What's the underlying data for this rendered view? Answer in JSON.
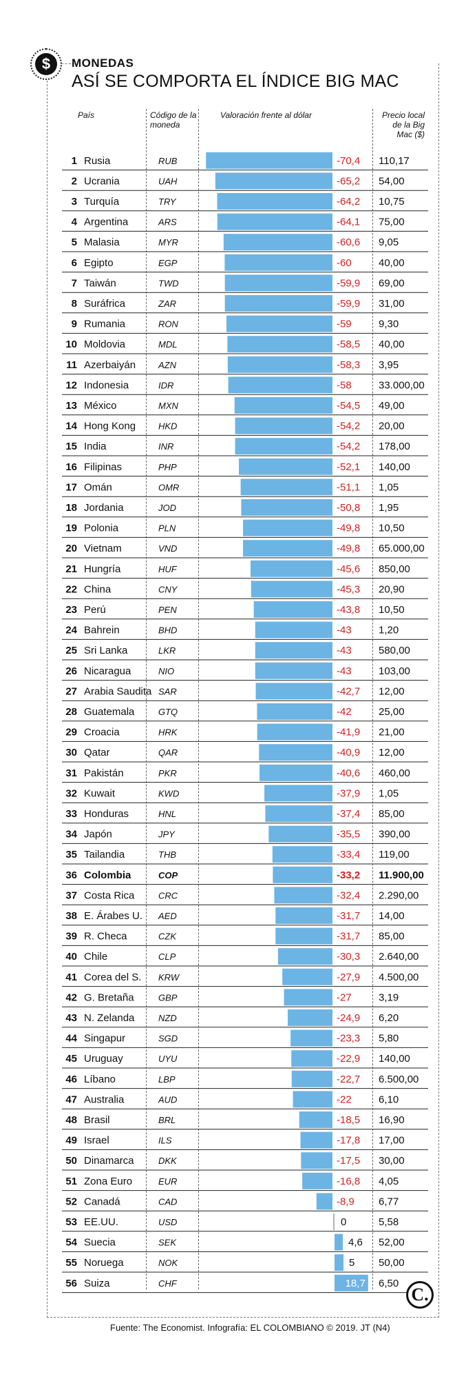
{
  "header": {
    "kicker": "MONEDAS",
    "title": "ASÍ SE COMPORTA EL ÍNDICE BIG MAC",
    "logo_icon": "dollar-coin-icon",
    "logo_symbol": "$"
  },
  "columns": {
    "country": "País",
    "code": "Código de la moneda",
    "valuation": "Valoración frente al dólar",
    "price": "Precio local de la Big Mac ($)"
  },
  "footer": {
    "source": "Fuente: The Economist. Infografía: EL COLOMBIANO © 2019. JT (N4)",
    "brand_icon": "el-colombiano-c-icon",
    "brand_symbol": "C."
  },
  "colors": {
    "bar": "#6cb4e4",
    "negative_text": "#d62020",
    "positive_text": "#111111",
    "positive_label_on_bar": "#ffffff"
  },
  "chart_data": {
    "type": "table",
    "value_unit": "percent valuation vs US dollar",
    "highlight_country": "Colombia",
    "rows": [
      {
        "rank": "1",
        "country": "Rusia",
        "code": "RUB",
        "value": -70.4,
        "value_label": "-70,4",
        "price": "110,17"
      },
      {
        "rank": "2",
        "country": "Ucrania",
        "code": "UAH",
        "value": -65.2,
        "value_label": "-65,2",
        "price": "54,00"
      },
      {
        "rank": "3",
        "country": "Turquía",
        "code": "TRY",
        "value": -64.2,
        "value_label": "-64,2",
        "price": "10,75"
      },
      {
        "rank": "4",
        "country": "Argentina",
        "code": "ARS",
        "value": -64.1,
        "value_label": "-64,1",
        "price": "75,00"
      },
      {
        "rank": "5",
        "country": "Malasia",
        "code": "MYR",
        "value": -60.6,
        "value_label": "-60,6",
        "price": "9,05"
      },
      {
        "rank": "6",
        "country": "Egipto",
        "code": "EGP",
        "value": -60,
        "value_label": "-60",
        "price": "40,00"
      },
      {
        "rank": "7",
        "country": "Taiwán",
        "code": "TWD",
        "value": -59.9,
        "value_label": "-59,9",
        "price": "69,00"
      },
      {
        "rank": "8",
        "country": "Suráfrica",
        "code": "ZAR",
        "value": -59.9,
        "value_label": "-59,9",
        "price": "31,00"
      },
      {
        "rank": "9",
        "country": "Rumania",
        "code": "RON",
        "value": -59,
        "value_label": "-59",
        "price": "9,30"
      },
      {
        "rank": "10",
        "country": "Moldovia",
        "code": "MDL",
        "value": -58.5,
        "value_label": "-58,5",
        "price": "40,00"
      },
      {
        "rank": "11",
        "country": "Azerbaiyán",
        "code": "AZN",
        "value": -58.3,
        "value_label": "-58,3",
        "price": "3,95"
      },
      {
        "rank": "12",
        "country": "Indonesia",
        "code": "IDR",
        "value": -58,
        "value_label": "-58",
        "price": "33.000,00"
      },
      {
        "rank": "13",
        "country": "México",
        "code": "MXN",
        "value": -54.5,
        "value_label": "-54,5",
        "price": "49,00"
      },
      {
        "rank": "14",
        "country": "Hong Kong",
        "code": "HKD",
        "value": -54.2,
        "value_label": "-54,2",
        "price": "20,00"
      },
      {
        "rank": "15",
        "country": "India",
        "code": "INR",
        "value": -54.2,
        "value_label": "-54,2",
        "price": "178,00"
      },
      {
        "rank": "16",
        "country": "Filipinas",
        "code": "PHP",
        "value": -52.1,
        "value_label": "-52,1",
        "price": "140,00"
      },
      {
        "rank": "17",
        "country": "Omán",
        "code": "OMR",
        "value": -51.1,
        "value_label": "-51,1",
        "price": "1,05"
      },
      {
        "rank": "18",
        "country": "Jordania",
        "code": "JOD",
        "value": -50.8,
        "value_label": "-50,8",
        "price": "1,95"
      },
      {
        "rank": "19",
        "country": "Polonia",
        "code": "PLN",
        "value": -49.8,
        "value_label": "-49,8",
        "price": "10,50"
      },
      {
        "rank": "20",
        "country": "Vietnam",
        "code": "VND",
        "value": -49.8,
        "value_label": "-49,8",
        "price": "65.000,00"
      },
      {
        "rank": "21",
        "country": "Hungría",
        "code": "HUF",
        "value": -45.6,
        "value_label": "-45,6",
        "price": "850,00"
      },
      {
        "rank": "22",
        "country": "China",
        "code": "CNY",
        "value": -45.3,
        "value_label": "-45,3",
        "price": "20,90"
      },
      {
        "rank": "23",
        "country": "Perú",
        "code": "PEN",
        "value": -43.8,
        "value_label": "-43,8",
        "price": "10,50"
      },
      {
        "rank": "24",
        "country": "Bahrein",
        "code": "BHD",
        "value": -43,
        "value_label": "-43",
        "price": "1,20"
      },
      {
        "rank": "25",
        "country": "Sri Lanka",
        "code": "LKR",
        "value": -43,
        "value_label": "-43",
        "price": "580,00"
      },
      {
        "rank": "26",
        "country": "Nicaragua",
        "code": "NIO",
        "value": -43,
        "value_label": "-43",
        "price": "103,00"
      },
      {
        "rank": "27",
        "country": "Arabia Saudita",
        "code": "SAR",
        "value": -42.7,
        "value_label": "-42,7",
        "price": "12,00"
      },
      {
        "rank": "28",
        "country": "Guatemala",
        "code": "GTQ",
        "value": -42,
        "value_label": "-42",
        "price": "25,00"
      },
      {
        "rank": "29",
        "country": "Croacia",
        "code": "HRK",
        "value": -41.9,
        "value_label": "-41,9",
        "price": "21,00"
      },
      {
        "rank": "30",
        "country": "Qatar",
        "code": "QAR",
        "value": -40.9,
        "value_label": "-40,9",
        "price": "12,00"
      },
      {
        "rank": "31",
        "country": "Pakistán",
        "code": "PKR",
        "value": -40.6,
        "value_label": "-40,6",
        "price": "460,00"
      },
      {
        "rank": "32",
        "country": "Kuwait",
        "code": "KWD",
        "value": -37.9,
        "value_label": "-37,9",
        "price": "1,05"
      },
      {
        "rank": "33",
        "country": "Honduras",
        "code": "HNL",
        "value": -37.4,
        "value_label": "-37,4",
        "price": "85,00"
      },
      {
        "rank": "34",
        "country": "Japón",
        "code": "JPY",
        "value": -35.5,
        "value_label": "-35,5",
        "price": "390,00"
      },
      {
        "rank": "35",
        "country": "Tailandia",
        "code": "THB",
        "value": -33.4,
        "value_label": "-33,4",
        "price": "119,00"
      },
      {
        "rank": "36",
        "country": "Colombia",
        "code": "COP",
        "value": -33.2,
        "value_label": "-33,2",
        "price": "11.900,00"
      },
      {
        "rank": "37",
        "country": "Costa Rica",
        "code": "CRC",
        "value": -32.4,
        "value_label": "-32,4",
        "price": "2.290,00"
      },
      {
        "rank": "38",
        "country": "E. Árabes U.",
        "code": "AED",
        "value": -31.7,
        "value_label": "-31,7",
        "price": "14,00"
      },
      {
        "rank": "39",
        "country": "R. Checa",
        "code": "CZK",
        "value": -31.7,
        "value_label": "-31,7",
        "price": "85,00"
      },
      {
        "rank": "40",
        "country": "Chile",
        "code": "CLP",
        "value": -30.3,
        "value_label": "-30,3",
        "price": "2.640,00"
      },
      {
        "rank": "41",
        "country": "Corea del S.",
        "code": "KRW",
        "value": -27.9,
        "value_label": "-27,9",
        "price": "4.500,00"
      },
      {
        "rank": "42",
        "country": "G. Bretaña",
        "code": "GBP",
        "value": -27,
        "value_label": "-27",
        "price": "3,19"
      },
      {
        "rank": "43",
        "country": "N. Zelanda",
        "code": "NZD",
        "value": -24.9,
        "value_label": "-24,9",
        "price": "6,20"
      },
      {
        "rank": "44",
        "country": "Singapur",
        "code": "SGD",
        "value": -23.3,
        "value_label": "-23,3",
        "price": "5,80"
      },
      {
        "rank": "45",
        "country": "Uruguay",
        "code": "UYU",
        "value": -22.9,
        "value_label": "-22,9",
        "price": "140,00"
      },
      {
        "rank": "46",
        "country": "Líbano",
        "code": "LBP",
        "value": -22.7,
        "value_label": "-22,7",
        "price": "6.500,00"
      },
      {
        "rank": "47",
        "country": "Australia",
        "code": "AUD",
        "value": -22,
        "value_label": "-22",
        "price": "6,10"
      },
      {
        "rank": "48",
        "country": "Brasil",
        "code": "BRL",
        "value": -18.5,
        "value_label": "-18,5",
        "price": "16,90"
      },
      {
        "rank": "49",
        "country": "Israel",
        "code": "ILS",
        "value": -17.8,
        "value_label": "-17,8",
        "price": "17,00"
      },
      {
        "rank": "50",
        "country": "Dinamarca",
        "code": "DKK",
        "value": -17.5,
        "value_label": "-17,5",
        "price": "30,00"
      },
      {
        "rank": "51",
        "country": "Zona Euro",
        "code": "EUR",
        "value": -16.8,
        "value_label": "-16,8",
        "price": "4,05"
      },
      {
        "rank": "52",
        "country": "Canadá",
        "code": "CAD",
        "value": -8.9,
        "value_label": "-8,9",
        "price": "6,77"
      },
      {
        "rank": "53",
        "country": "EE.UU.",
        "code": "USD",
        "value": 0,
        "value_label": "0",
        "price": "5,58"
      },
      {
        "rank": "54",
        "country": "Suecia",
        "code": "SEK",
        "value": 4.6,
        "value_label": "4,6",
        "price": "52,00"
      },
      {
        "rank": "55",
        "country": "Noruega",
        "code": "NOK",
        "value": 5,
        "value_label": "5",
        "price": "50,00"
      },
      {
        "rank": "56",
        "country": "Suiza",
        "code": "CHF",
        "value": 18.7,
        "value_label": "18,7",
        "price": "6,50"
      }
    ]
  }
}
